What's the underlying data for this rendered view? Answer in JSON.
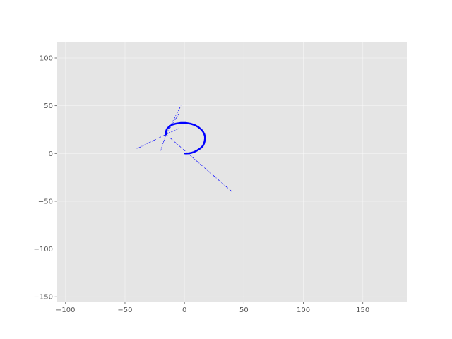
{
  "chart_data": {
    "type": "line",
    "title": "",
    "xlabel": "",
    "ylabel": "",
    "xlim": [
      -107,
      187
    ],
    "ylim": [
      -155,
      117
    ],
    "xticks": [
      -100,
      -50,
      0,
      50,
      100,
      150
    ],
    "yticks": [
      100,
      50,
      0,
      -50,
      -100,
      -150
    ],
    "xtick_labels": [
      "−100",
      "−50",
      "0",
      "50",
      "100",
      "150"
    ],
    "ytick_labels": [
      "100",
      "50",
      "0",
      "−50",
      "−100",
      "−150"
    ],
    "grid": true,
    "style": "ggplot",
    "series": [
      {
        "color": "#0000ff",
        "linestyle": "solid",
        "points": [
          [
            0.5,
            0
          ],
          [
            2,
            0
          ],
          [
            4,
            0.2
          ],
          [
            6,
            0.7
          ],
          [
            8,
            1.5
          ],
          [
            10,
            2.7
          ],
          [
            12,
            4.2
          ],
          [
            14,
            6
          ],
          [
            15.5,
            8
          ],
          [
            16.5,
            10.5
          ],
          [
            17,
            13
          ],
          [
            17.3,
            15.5
          ],
          [
            17.2,
            18
          ],
          [
            16.6,
            20.5
          ],
          [
            15.5,
            23
          ],
          [
            13.8,
            25.5
          ],
          [
            11.5,
            27.8
          ],
          [
            8.5,
            29.8
          ],
          [
            5,
            31.2
          ],
          [
            1,
            32
          ],
          [
            -3,
            32
          ],
          [
            -7,
            31.3
          ],
          [
            -10.5,
            30
          ],
          [
            -13,
            28
          ],
          [
            -14.8,
            25.5
          ],
          [
            -15.7,
            22.5
          ],
          [
            -15.5,
            20
          ]
        ]
      },
      {
        "color": "#0000ff",
        "linestyle": "dashdot",
        "segments": [
          [
            [
              -15.5,
              20
            ],
            [
              40,
              -40
            ]
          ],
          [
            [
              -15.5,
              20
            ],
            [
              -40,
              5
            ]
          ],
          [
            [
              -15.5,
              20
            ],
            [
              -20,
              3
            ]
          ],
          [
            [
              -15.5,
              20
            ],
            [
              -3,
              50
            ]
          ],
          [
            [
              -15.5,
              20
            ],
            [
              -5,
              41
            ]
          ],
          [
            [
              -15.5,
              20
            ],
            [
              -5,
              26
            ]
          ]
        ]
      }
    ]
  }
}
